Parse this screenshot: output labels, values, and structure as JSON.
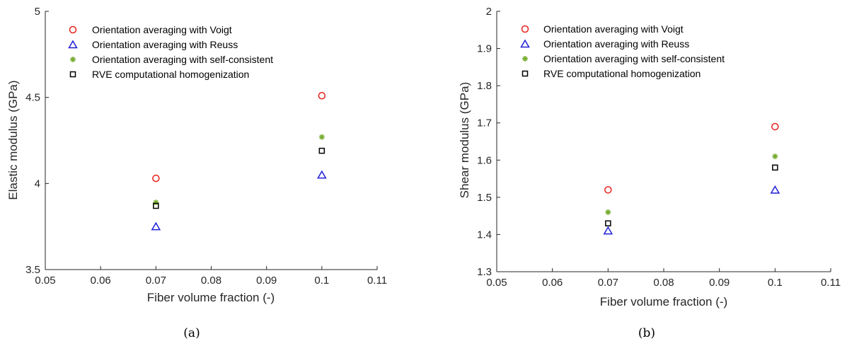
{
  "chart_data": [
    {
      "type": "scatter",
      "caption": "(a)",
      "xlabel": "Fiber volume fraction (-)",
      "ylabel": "Elastic modulus (GPa)",
      "xlim": [
        0.05,
        0.11
      ],
      "ylim": [
        3.5,
        5
      ],
      "xticks": [
        "0.05",
        "0.06",
        "0.07",
        "0.08",
        "0.09",
        "0.1",
        "0.11"
      ],
      "yticks": [
        "3.5",
        "4",
        "4.5",
        "5"
      ],
      "grid": false,
      "legend_position": "top-left",
      "series": [
        {
          "name": "Orientation averaging with Voigt",
          "marker": "circle",
          "color": "#e8211b",
          "x": [
            0.07,
            0.1
          ],
          "y": [
            4.03,
            4.51
          ]
        },
        {
          "name": "Orientation averaging with Reuss",
          "marker": "triangle",
          "color": "#1f1fd6",
          "x": [
            0.07,
            0.1
          ],
          "y": [
            3.75,
            4.05
          ]
        },
        {
          "name": "Orientation averaging with self-consistent",
          "marker": "asterisk",
          "color": "#77ac30",
          "x": [
            0.07,
            0.1
          ],
          "y": [
            3.89,
            4.27
          ]
        },
        {
          "name": "RVE computational homogenization",
          "marker": "square",
          "color": "#000000",
          "x": [
            0.07,
            0.1
          ],
          "y": [
            3.87,
            4.19
          ]
        }
      ]
    },
    {
      "type": "scatter",
      "caption": "(b)",
      "xlabel": "Fiber volume fraction (-)",
      "ylabel": "Shear modulus (GPa)",
      "xlim": [
        0.05,
        0.11
      ],
      "ylim": [
        1.3,
        2
      ],
      "xticks": [
        "0.05",
        "0.06",
        "0.07",
        "0.08",
        "0.09",
        "0.1",
        "0.11"
      ],
      "yticks": [
        "1.3",
        "1.4",
        "1.5",
        "1.6",
        "1.7",
        "1.8",
        "1.9",
        "2"
      ],
      "grid": false,
      "legend_position": "top-left",
      "series": [
        {
          "name": "Orientation averaging with Voigt",
          "marker": "circle",
          "color": "#e8211b",
          "x": [
            0.07,
            0.1
          ],
          "y": [
            1.52,
            1.69
          ]
        },
        {
          "name": "Orientation averaging with Reuss",
          "marker": "triangle",
          "color": "#1f1fd6",
          "x": [
            0.07,
            0.1
          ],
          "y": [
            1.41,
            1.52
          ]
        },
        {
          "name": "Orientation averaging with self-consistent",
          "marker": "asterisk",
          "color": "#77ac30",
          "x": [
            0.07,
            0.1
          ],
          "y": [
            1.46,
            1.61
          ]
        },
        {
          "name": "RVE computational homogenization",
          "marker": "square",
          "color": "#000000",
          "x": [
            0.07,
            0.1
          ],
          "y": [
            1.43,
            1.58
          ]
        }
      ]
    }
  ]
}
